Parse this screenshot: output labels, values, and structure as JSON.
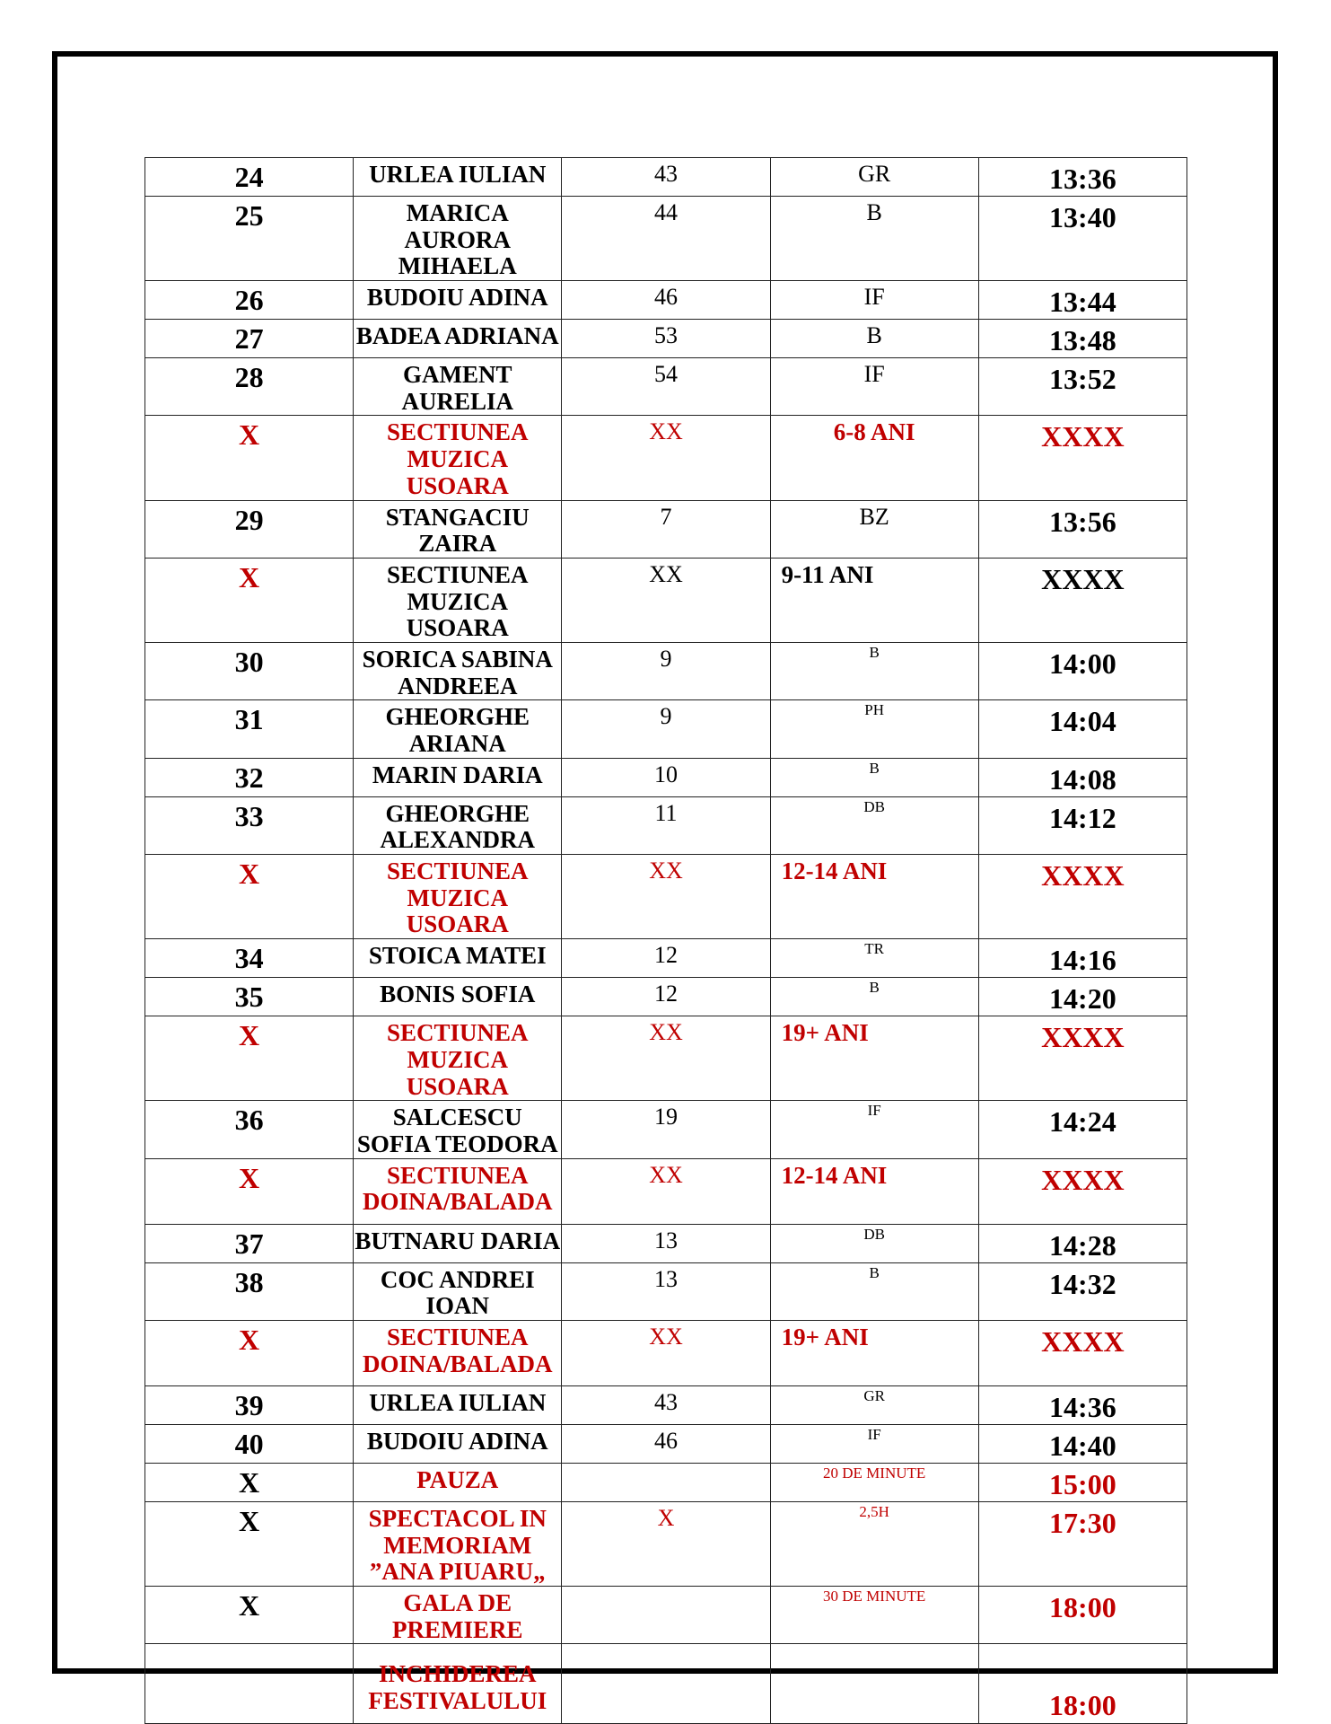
{
  "colors": {
    "accent_red": "#c00000",
    "text": "#000000"
  },
  "rows": [
    {
      "no": "24",
      "name": "URLEA IULIAN",
      "age": "43",
      "code": "GR",
      "time": "13:36"
    },
    {
      "no": "25",
      "name": "MARICA AURORA MIHAELA",
      "age": "44",
      "code": "B",
      "time": "13:40"
    },
    {
      "no": "26",
      "name": "BUDOIU ADINA",
      "age": "46",
      "code": "IF",
      "time": "13:44"
    },
    {
      "no": "27",
      "name": "BADEA ADRIANA",
      "age": "53",
      "code": "B",
      "time": "13:48"
    },
    {
      "no": "28",
      "name": "GAMENT AURELIA",
      "age": "54",
      "code": "IF",
      "time": "13:52"
    },
    {
      "kind": "section",
      "no": "X",
      "name": "SECTIUNEA MUZICA USOARA",
      "age": "XX",
      "code": "6-8 ANI",
      "time": "XXXX",
      "red": true
    },
    {
      "no": "29",
      "name": "STANGACIU ZAIRA",
      "age": "7",
      "code": "BZ",
      "time": "13:56"
    },
    {
      "kind": "section",
      "no": "X",
      "name": "SECTIUNEA MUZICA USOARA",
      "age": "XX",
      "code": "9-11 ANI",
      "time": "XXXX",
      "red": false,
      "cat_left": true
    },
    {
      "no": "30",
      "name": "SORICA SABINA ANDREEA",
      "age": "9",
      "code": "B",
      "time": "14:00",
      "small": true
    },
    {
      "no": "31",
      "name": "GHEORGHE ARIANA",
      "age": "9",
      "code": "PH",
      "time": "14:04",
      "small": true
    },
    {
      "no": "32",
      "name": "MARIN DARIA",
      "age": "10",
      "code": "B",
      "time": "14:08",
      "small": true
    },
    {
      "no": "33",
      "name": "GHEORGHE ALEXANDRA",
      "age": "11",
      "code": "DB",
      "time": "14:12",
      "small": true
    },
    {
      "kind": "section",
      "no": "X",
      "name": "SECTIUNEA MUZICA USOARA",
      "age": "XX",
      "code": "12-14 ANI",
      "time": "XXXX",
      "red": true,
      "cat_left": true
    },
    {
      "no": "34",
      "name": "STOICA MATEI",
      "age": "12",
      "code": "TR",
      "time": "14:16",
      "small": true
    },
    {
      "no": "35",
      "name": "BONIS SOFIA",
      "age": "12",
      "code": "B",
      "time": "14:20",
      "small": true
    },
    {
      "kind": "section",
      "no": "X",
      "name": "SECTIUNEA MUZICA USOARA",
      "age": "XX",
      "code": "19+ ANI",
      "time": "XXXX",
      "red": true,
      "cat_left": true
    },
    {
      "no": "36",
      "name": "SALCESCU SOFIA TEODORA",
      "age": "19",
      "code": "IF",
      "time": "14:24",
      "small": true
    },
    {
      "kind": "section",
      "no": "X",
      "name": "SECTIUNEA DOINA/BALADA",
      "age": "XX",
      "code": "12-14 ANI",
      "time": "XXXX",
      "red": true,
      "cat_left": true
    },
    {
      "no": "37",
      "name": "BUTNARU DARIA",
      "age": "13",
      "code": "DB",
      "time": "14:28",
      "small": true
    },
    {
      "no": "38",
      "name": "COC ANDREI IOAN",
      "age": "13",
      "code": "B",
      "time": "14:32",
      "small": true
    },
    {
      "kind": "section",
      "no": "X",
      "name": "SECTIUNEA DOINA/BALADA",
      "age": "XX",
      "code": "19+ ANI",
      "time": "XXXX",
      "red": true,
      "cat_left": true
    },
    {
      "no": "39",
      "name": "URLEA IULIAN",
      "age": "43",
      "code": "GR",
      "time": "14:36",
      "small": true
    },
    {
      "no": "40",
      "name": "BUDOIU ADINA",
      "age": "46",
      "code": "IF",
      "time": "14:40",
      "small": true
    },
    {
      "kind": "event",
      "no": "X",
      "name": "PAUZA",
      "age": "",
      "code": "20 DE MINUTE",
      "time": "15:00"
    },
    {
      "kind": "event",
      "no": "X",
      "name": "SPECTACOL IN MEMORIAM ”ANA PIUARU„",
      "age": "X",
      "code": "2,5H",
      "time": "17:30",
      "tall": true
    },
    {
      "kind": "event",
      "no": "X",
      "name": "GALA DE PREMIERE",
      "age": "",
      "code": "30 DE MINUTE",
      "time": "18:00"
    },
    {
      "kind": "closing",
      "no": "",
      "name": "INCHIDEREA FESTIVALULUI",
      "age": "",
      "code": "",
      "time": "18:00"
    }
  ]
}
